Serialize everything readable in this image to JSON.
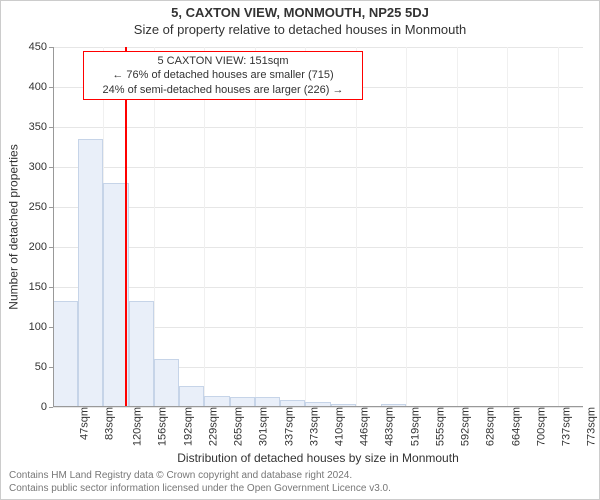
{
  "chart": {
    "type": "bar-histogram",
    "title": "5, CAXTON VIEW, MONMOUTH, NP25 5DJ",
    "subtitle": "Size of property relative to detached houses in Monmouth",
    "ylabel": "Number of detached properties",
    "xlabel": "Distribution of detached houses by size in Monmouth",
    "background_color": "#ffffff",
    "grid_color": "#e6e6e6",
    "axis_color": "#999999",
    "bar_fill": "#e9eff9",
    "bar_border": "#c6d4e8",
    "marker_color": "#ff0000",
    "annotation_border": "#ff0000",
    "font_family": "Arial",
    "ylim": [
      0,
      450
    ],
    "ytick_step": 50,
    "x_categories": [
      "47sqm",
      "83sqm",
      "120sqm",
      "156sqm",
      "192sqm",
      "229sqm",
      "265sqm",
      "301sqm",
      "337sqm",
      "373sqm",
      "410sqm",
      "446sqm",
      "483sqm",
      "519sqm",
      "555sqm",
      "592sqm",
      "628sqm",
      "664sqm",
      "700sqm",
      "737sqm",
      "773sqm"
    ],
    "values": [
      132,
      335,
      280,
      132,
      60,
      26,
      14,
      12,
      12,
      9,
      6,
      4,
      0,
      4,
      0,
      0,
      0,
      0,
      0,
      0,
      0
    ],
    "marker_sqm": 151,
    "annotation": {
      "line1": "5 CAXTON VIEW: 151sqm",
      "line2": "← 76% of detached houses are smaller (715)",
      "line3": "24% of semi-detached houses are larger (226) →"
    },
    "footnote_line1": "Contains HM Land Registry data © Crown copyright and database right 2024.",
    "footnote_line2": "Contains public sector information licensed under the Open Government Licence v3.0."
  }
}
